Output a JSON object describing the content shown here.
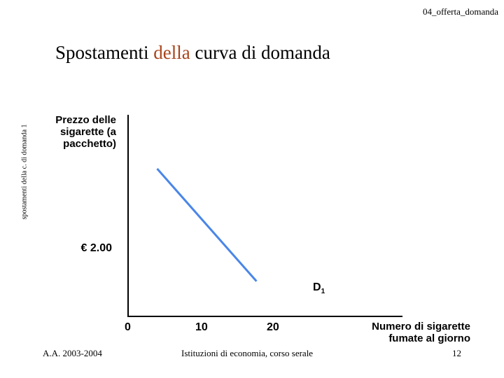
{
  "header": {
    "tag": "04_offerta_domanda"
  },
  "title": {
    "part1": "Spostamenti ",
    "accent": "della",
    "part2": " curva di domanda"
  },
  "side_note": "spostamenti della c. di domanda 1",
  "chart_data": {
    "type": "line",
    "ylabel": "Prezzo delle sigarette (a pacchetto)",
    "xlabel": "Numero di sigarette fumate al giorno",
    "x_ticks": [
      "0",
      "10",
      "20"
    ],
    "y_ticks": [
      "€ 2.00"
    ],
    "series": [
      {
        "name": "D1",
        "label_main": "D",
        "label_sub": "1",
        "color": "#4a86e8",
        "points": [
          {
            "x": 4,
            "y": 3.15
          },
          {
            "x": 18,
            "y": 0.75
          }
        ]
      }
    ],
    "xlim": [
      0,
      30
    ],
    "ylim": [
      0,
      4.3
    ],
    "grid": false
  },
  "footer": {
    "left": "A.A. 2003-2004",
    "center": "Istituzioni di economia, corso serale",
    "page": "12"
  }
}
